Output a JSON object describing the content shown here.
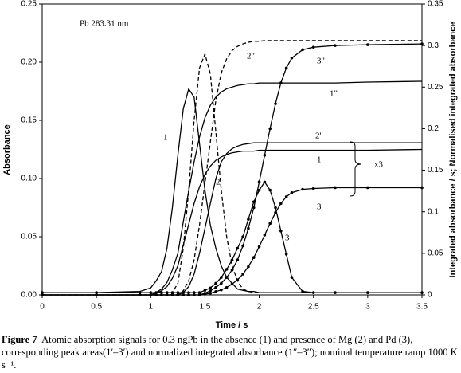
{
  "chart_data": {
    "type": "line",
    "annotation": "Pb 283.31 nm",
    "group_label": "x3",
    "xlabel": "Time / s",
    "ylabel": "Absorbance",
    "y2label": "Integrated absorbance / s; Normalised integrated absorbance",
    "xlim": [
      0,
      3.5
    ],
    "xticks": [
      0,
      0.5,
      1,
      1.5,
      2,
      2.5,
      3,
      3.5
    ],
    "ylim": [
      0,
      0.25
    ],
    "yticks": [
      {
        "value": 0,
        "label": "0.00"
      },
      {
        "value": 0.05,
        "label": "0.05"
      },
      {
        "value": 0.1,
        "label": "0.10"
      },
      {
        "value": 0.15,
        "label": "0.15"
      },
      {
        "value": 0.2,
        "label": "0.20"
      },
      {
        "value": 0.25,
        "label": "0.25"
      }
    ],
    "y2lim": [
      0,
      0.35
    ],
    "y2ticks": [
      0,
      0.05,
      0.1,
      0.15,
      0.2,
      0.25,
      0.3,
      0.35
    ],
    "x": [
      0,
      0.5,
      0.9,
      1.0,
      1.05,
      1.1,
      1.15,
      1.2,
      1.25,
      1.3,
      1.35,
      1.4,
      1.45,
      1.5,
      1.55,
      1.6,
      1.65,
      1.7,
      1.75,
      1.8,
      1.85,
      1.9,
      1.95,
      2.0,
      2.05,
      2.1,
      2.15,
      2.2,
      2.25,
      2.3,
      2.4,
      2.5,
      2.7,
      3.0,
      3.5
    ],
    "series": [
      {
        "name": "1",
        "color": "#000000",
        "line": "solid",
        "markers": false,
        "values": [
          0.002,
          0.002,
          0.003,
          0.006,
          0.012,
          0.02,
          0.04,
          0.075,
          0.12,
          0.16,
          0.177,
          0.17,
          0.13,
          0.09,
          0.06,
          0.04,
          0.025,
          0.015,
          0.01,
          0.005,
          0.004,
          0.003,
          0.003,
          0.002,
          0.002,
          0.002,
          0.002,
          0.002,
          0.002,
          0.002,
          0.002,
          0.002,
          0.002,
          0.002,
          0.002
        ]
      },
      {
        "name": "2",
        "color": "#000000",
        "line": "dashed",
        "markers": false,
        "values": [
          0.002,
          0.002,
          0.002,
          0.002,
          0.002,
          0.002,
          0.002,
          0.002,
          0.01,
          0.04,
          0.09,
          0.15,
          0.195,
          0.207,
          0.19,
          0.14,
          0.09,
          0.05,
          0.025,
          0.012,
          0.005,
          0.003,
          0.002,
          0.002,
          0.002,
          0.002,
          0.002,
          0.002,
          0.002,
          0.002,
          0.002,
          0.002,
          0.002,
          0.002,
          0.002
        ]
      },
      {
        "name": "3",
        "color": "#000000",
        "line": "solid",
        "markers": true,
        "values": [
          0.002,
          0.002,
          0.002,
          0.002,
          0.002,
          0.002,
          0.002,
          0.002,
          0.002,
          0.002,
          0.002,
          0.002,
          0.002,
          0.004,
          0.006,
          0.01,
          0.015,
          0.022,
          0.03,
          0.04,
          0.05,
          0.065,
          0.08,
          0.09,
          0.097,
          0.09,
          0.075,
          0.055,
          0.035,
          0.015,
          0.003,
          0.002,
          0.002,
          0.002,
          0.002
        ]
      },
      {
        "name": "1'",
        "color": "#000000",
        "line": "solid",
        "markers": false,
        "axis": "y2",
        "values": [
          0,
          0,
          0,
          0,
          0.002,
          0.005,
          0.01,
          0.02,
          0.035,
          0.06,
          0.085,
          0.11,
          0.13,
          0.145,
          0.155,
          0.162,
          0.166,
          0.169,
          0.171,
          0.172,
          0.173,
          0.173,
          0.173,
          0.174,
          0.174,
          0.174,
          0.174,
          0.174,
          0.174,
          0.174,
          0.174,
          0.174,
          0.174,
          0.174,
          0.175
        ]
      },
      {
        "name": "2'",
        "color": "#000000",
        "line": "solid",
        "markers": false,
        "axis": "y2",
        "values": [
          0,
          0,
          0,
          0,
          0,
          0,
          0,
          0,
          0,
          0.003,
          0.01,
          0.025,
          0.05,
          0.08,
          0.11,
          0.14,
          0.16,
          0.17,
          0.176,
          0.179,
          0.181,
          0.182,
          0.183,
          0.183,
          0.183,
          0.183,
          0.183,
          0.183,
          0.183,
          0.183,
          0.183,
          0.183,
          0.183,
          0.183,
          0.183
        ]
      },
      {
        "name": "3'",
        "color": "#000000",
        "line": "solid",
        "markers": true,
        "axis": "y2",
        "values": [
          0,
          0,
          0,
          0,
          0,
          0,
          0,
          0,
          0,
          0,
          0,
          0,
          0,
          0.001,
          0.002,
          0.004,
          0.006,
          0.009,
          0.013,
          0.018,
          0.025,
          0.034,
          0.045,
          0.058,
          0.072,
          0.086,
          0.099,
          0.11,
          0.118,
          0.123,
          0.127,
          0.128,
          0.129,
          0.129,
          0.129
        ]
      },
      {
        "name": "1\"",
        "color": "#000000",
        "line": "solid",
        "markers": false,
        "axis": "y2",
        "values": [
          0,
          0,
          0,
          0,
          0.003,
          0.007,
          0.015,
          0.03,
          0.05,
          0.088,
          0.125,
          0.16,
          0.19,
          0.213,
          0.228,
          0.238,
          0.244,
          0.248,
          0.25,
          0.252,
          0.253,
          0.254,
          0.254,
          0.255,
          0.255,
          0.255,
          0.255,
          0.255,
          0.255,
          0.255,
          0.255,
          0.255,
          0.255,
          0.256,
          0.257
        ]
      },
      {
        "name": "2\"",
        "color": "#000000",
        "line": "dashed",
        "markers": false,
        "axis": "y2",
        "values": [
          0,
          0,
          0,
          0,
          0,
          0,
          0,
          0,
          0,
          0.005,
          0.017,
          0.042,
          0.084,
          0.134,
          0.184,
          0.234,
          0.267,
          0.284,
          0.294,
          0.299,
          0.302,
          0.304,
          0.305,
          0.305,
          0.306,
          0.306,
          0.306,
          0.306,
          0.306,
          0.306,
          0.306,
          0.306,
          0.306,
          0.306,
          0.306
        ]
      },
      {
        "name": "3\"",
        "color": "#000000",
        "line": "solid",
        "markers": true,
        "axis": "y2",
        "values": [
          0,
          0,
          0,
          0,
          0,
          0,
          0,
          0,
          0,
          0,
          0,
          0,
          0,
          0.002,
          0.005,
          0.009,
          0.014,
          0.021,
          0.03,
          0.042,
          0.059,
          0.08,
          0.105,
          0.136,
          0.168,
          0.2,
          0.23,
          0.255,
          0.273,
          0.285,
          0.295,
          0.298,
          0.3,
          0.301,
          0.302
        ]
      }
    ]
  },
  "caption": {
    "label": "Figure 7",
    "text": "Atomic absorption signals for 0.3 ngPb in the absence (1) and presence of Mg (2) and Pd (3), corresponding peak areas(1′–3′) and normalized integrated absorbance (1″–3″); nominal temperature ramp 1000 K s⁻¹."
  }
}
